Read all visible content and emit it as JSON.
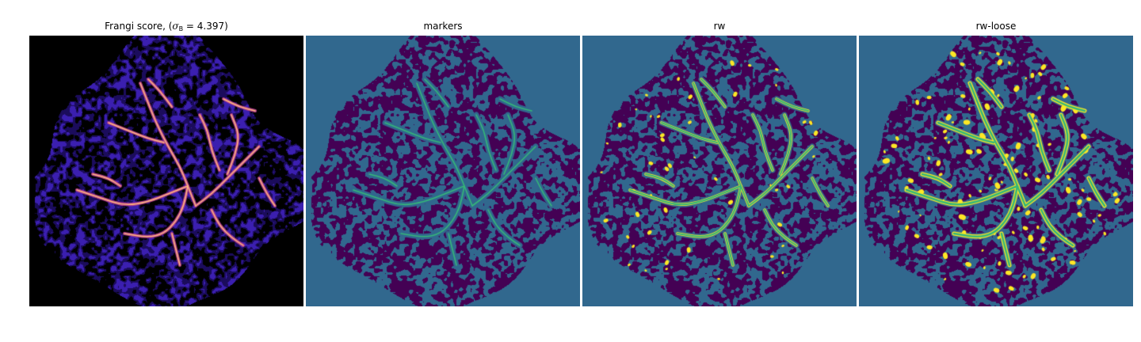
{
  "figure": {
    "panels": [
      {
        "id": "frangi",
        "title_prefix": "Frangi score, (",
        "title_symbol": "σ",
        "title_subscript": "B",
        "title_suffix": " = 4.397)",
        "title": "",
        "colormap": "magma",
        "background": "#000000",
        "colors": {
          "low": "#1b0c5c",
          "mid": "#3b1fb0",
          "high": "#b03a8c",
          "peak": "#fcb97d"
        }
      },
      {
        "id": "markers",
        "title": "markers",
        "colormap": "viridis",
        "colors": {
          "background": "#31688e",
          "tissue": "#440154",
          "marker": "#35b779"
        }
      },
      {
        "id": "rw",
        "title": "rw",
        "colormap": "viridis",
        "colors": {
          "background": "#31688e",
          "tissue": "#440154",
          "vessel": "#35b779",
          "edge": "#fde725"
        }
      },
      {
        "id": "rw-loose",
        "title": "rw-loose",
        "colormap": "viridis",
        "colors": {
          "background": "#31688e",
          "tissue": "#440154",
          "vessel": "#35b779",
          "edge": "#fde725"
        }
      }
    ]
  }
}
